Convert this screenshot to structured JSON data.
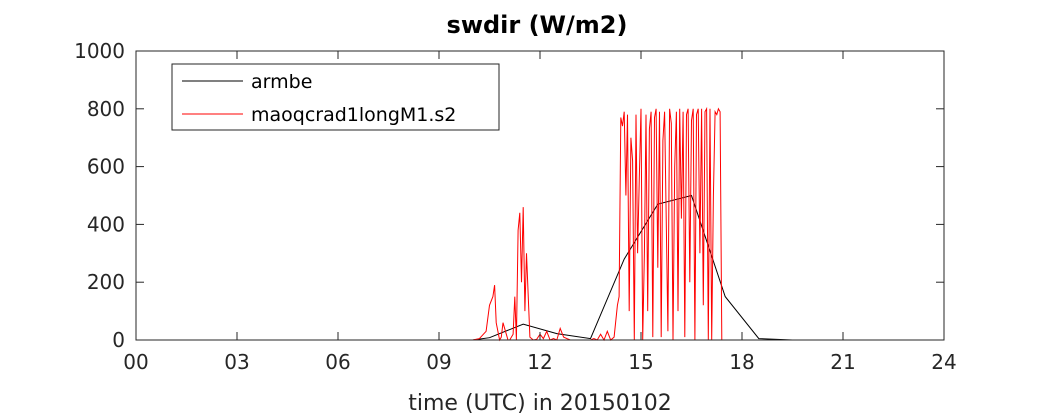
{
  "chart_data": {
    "type": "line",
    "title": "swdir  (W/m2)",
    "xlabel": "time (UTC) in 20150102",
    "ylabel": "",
    "xlim": [
      0,
      24
    ],
    "ylim": [
      0,
      1000
    ],
    "xticks": [
      0,
      3,
      6,
      9,
      12,
      15,
      18,
      21,
      24
    ],
    "xtick_labels": [
      "00",
      "03",
      "06",
      "09",
      "12",
      "15",
      "18",
      "21",
      "24"
    ],
    "yticks": [
      0,
      200,
      400,
      600,
      800,
      1000
    ],
    "ytick_labels": [
      "0",
      "200",
      "400",
      "600",
      "800",
      "1000"
    ],
    "grid": false,
    "legend": "top-left",
    "series": [
      {
        "name": "armbe",
        "color": "#000000",
        "x": [
          0,
          1,
          2,
          3,
          4,
          5,
          6,
          7,
          8,
          9,
          10,
          10.5,
          11.5,
          12.5,
          13.5,
          14.5,
          15.5,
          16.5,
          17.5,
          18.5,
          19.5,
          20.5,
          21.5,
          22.5,
          23.5,
          24
        ],
        "y": [
          0,
          0,
          0,
          0,
          0,
          0,
          0,
          0,
          0,
          0,
          0,
          8,
          55,
          22,
          5,
          280,
          470,
          500,
          150,
          5,
          0,
          0,
          0,
          0,
          0,
          0
        ]
      },
      {
        "name": "maoqcrad1longM1.s2",
        "color": "#ff0000",
        "x": [
          0,
          10.0,
          10.2,
          10.4,
          10.5,
          10.6,
          10.65,
          10.7,
          10.8,
          10.85,
          10.9,
          11.0,
          11.05,
          11.1,
          11.15,
          11.2,
          11.25,
          11.3,
          11.35,
          11.4,
          11.45,
          11.5,
          11.55,
          11.6,
          11.7,
          11.8,
          11.9,
          12.0,
          12.1,
          12.2,
          12.3,
          12.4,
          12.5,
          12.6,
          12.7,
          12.8,
          12.9,
          13.0,
          13.1,
          13.2,
          13.3,
          13.4,
          13.5,
          13.6,
          13.7,
          13.8,
          13.9,
          14.0,
          14.1,
          14.2,
          14.3,
          14.35,
          14.4,
          14.45,
          14.5,
          14.55,
          14.6,
          14.65,
          14.7,
          14.75,
          14.8,
          14.85,
          14.9,
          14.95,
          15.0,
          15.05,
          15.1,
          15.15,
          15.2,
          15.25,
          15.3,
          15.35,
          15.4,
          15.45,
          15.5,
          15.55,
          15.6,
          15.65,
          15.7,
          15.75,
          15.8,
          15.85,
          15.9,
          15.95,
          16.0,
          16.05,
          16.1,
          16.15,
          16.2,
          16.25,
          16.3,
          16.35,
          16.4,
          16.45,
          16.5,
          16.55,
          16.6,
          16.65,
          16.7,
          16.75,
          16.8,
          16.85,
          16.9,
          16.95,
          17.0,
          17.05,
          17.1,
          17.15,
          17.2,
          17.25,
          17.3,
          17.35,
          17.4,
          17.5,
          17.6,
          17.7,
          17.8,
          17.9,
          18.0,
          24
        ],
        "y": [
          0,
          0,
          5,
          30,
          120,
          150,
          190,
          60,
          0,
          10,
          60,
          20,
          0,
          0,
          10,
          20,
          150,
          0,
          380,
          440,
          200,
          460,
          100,
          300,
          10,
          0,
          2,
          20,
          5,
          30,
          0,
          5,
          0,
          40,
          10,
          5,
          0,
          0,
          0,
          0,
          0,
          0,
          0,
          5,
          0,
          20,
          0,
          30,
          0,
          10,
          120,
          150,
          770,
          740,
          790,
          500,
          780,
          100,
          700,
          620,
          0,
          780,
          300,
          560,
          800,
          0,
          300,
          780,
          100,
          730,
          790,
          10,
          770,
          800,
          250,
          790,
          10,
          690,
          790,
          400,
          30,
          800,
          750,
          0,
          600,
          790,
          100,
          800,
          420,
          790,
          10,
          780,
          800,
          200,
          760,
          800,
          0,
          780,
          800,
          300,
          800,
          120,
          790,
          800,
          0,
          800,
          0,
          500,
          790,
          780,
          800,
          790,
          0,
          0,
          0,
          0,
          0,
          0,
          0,
          0
        ]
      }
    ]
  }
}
